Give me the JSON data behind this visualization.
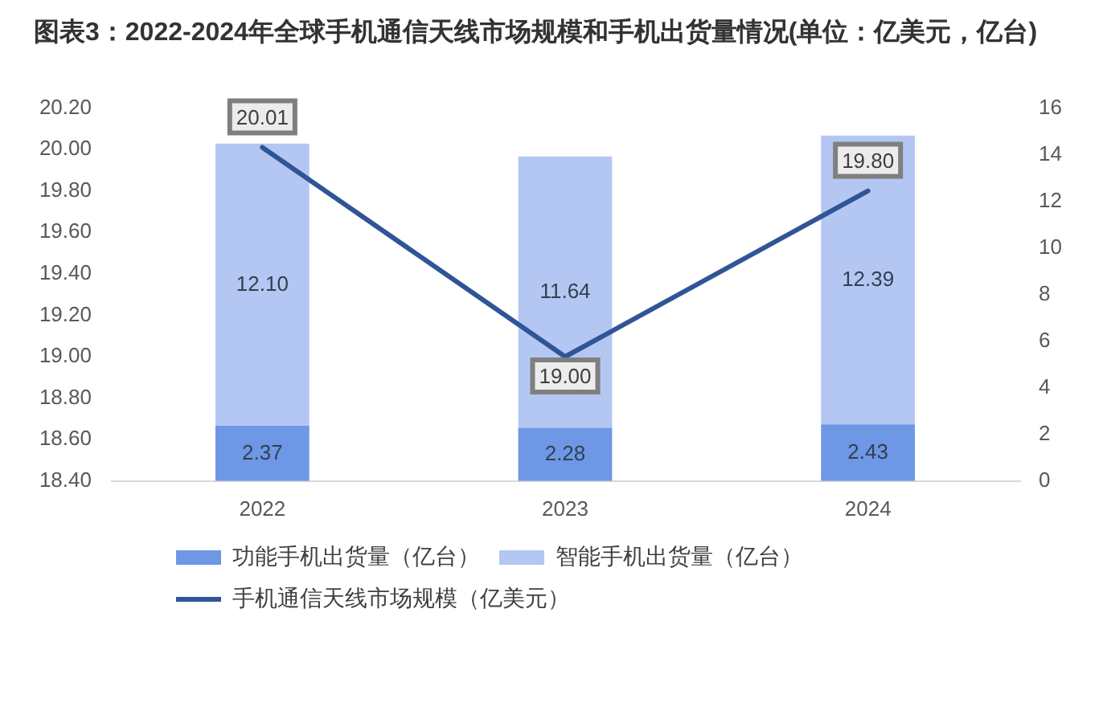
{
  "chart_data": {
    "type": "bar",
    "title": "图表3：2022-2024年全球手机通信天线市场规模和手机出货量情况(单位：亿美元，亿台)",
    "categories": [
      "2022",
      "2023",
      "2024"
    ],
    "stacked": true,
    "series": [
      {
        "name": "功能手机出货量（亿台）",
        "axis": "y2",
        "color": "#6e97e6",
        "values": [
          2.37,
          2.28,
          2.43
        ],
        "value_labels": [
          "2.37",
          "2.28",
          "2.43"
        ]
      },
      {
        "name": "智能手机出货量（亿台）",
        "axis": "y2",
        "color": "#b4c7f3",
        "values": [
          12.1,
          11.64,
          12.39
        ],
        "value_labels": [
          "12.10",
          "11.64",
          "12.39"
        ]
      },
      {
        "name": "手机通信天线市场规模（亿美元）",
        "type": "line",
        "color": "#2f5597",
        "values": [
          20.01,
          19.0,
          19.8
        ],
        "value_labels": [
          "20.01",
          "19.00",
          "19.80"
        ]
      }
    ],
    "ylim": [
      18.4,
      20.2
    ],
    "yticks": [
      {
        "value": 18.4,
        "label": "18.40"
      },
      {
        "value": 18.6,
        "label": "18.60"
      },
      {
        "value": 18.8,
        "label": "18.80"
      },
      {
        "value": 19.0,
        "label": "19.00"
      },
      {
        "value": 19.2,
        "label": "19.20"
      },
      {
        "value": 19.4,
        "label": "19.40"
      },
      {
        "value": 19.6,
        "label": "19.60"
      },
      {
        "value": 19.8,
        "label": "19.80"
      },
      {
        "value": 20.0,
        "label": "20.00"
      },
      {
        "value": 20.2,
        "label": "20.20"
      }
    ],
    "y2lim": [
      0,
      16
    ],
    "y2ticks": [
      0,
      2,
      4,
      6,
      8,
      10,
      12,
      14,
      16
    ],
    "legend": "bottom"
  }
}
